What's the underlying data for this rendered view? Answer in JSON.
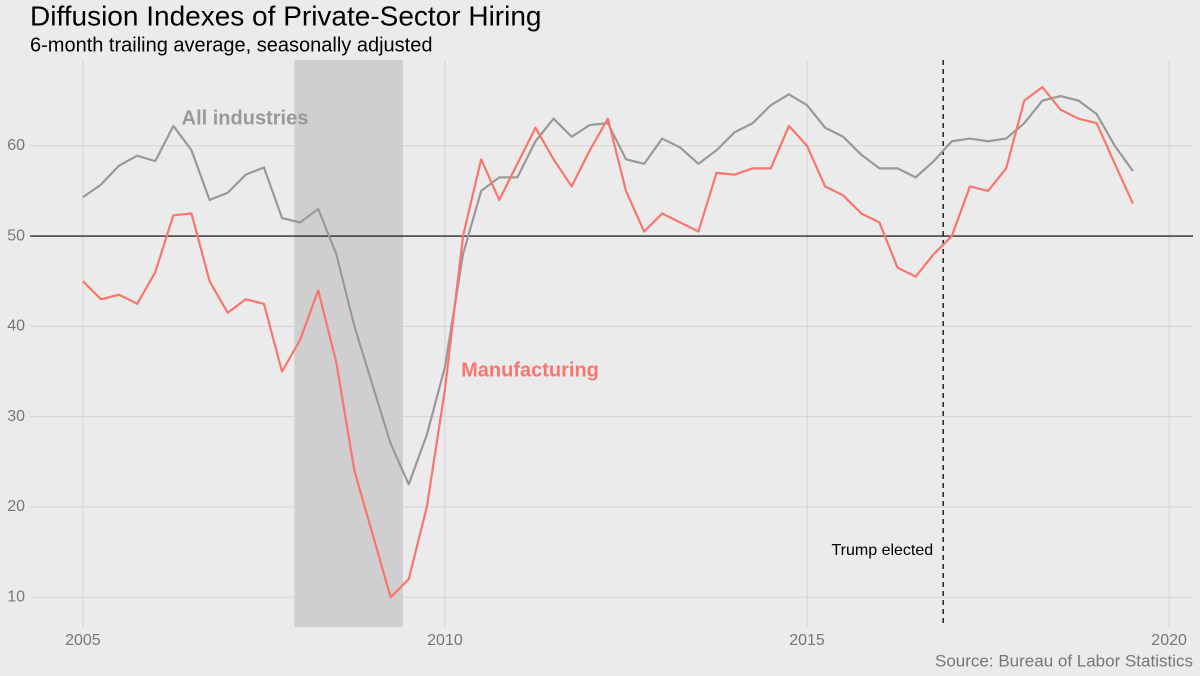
{
  "chart_data": {
    "type": "line",
    "title": "Diffusion Indexes of Private-Sector Hiring",
    "subtitle": "6-month trailing average, seasonally adjusted",
    "caption": "Source: Bureau of Labor Statistics",
    "x": [
      2005.0,
      2005.25,
      2005.5,
      2005.75,
      2006.0,
      2006.25,
      2006.5,
      2006.75,
      2007.0,
      2007.25,
      2007.5,
      2007.75,
      2008.0,
      2008.25,
      2008.5,
      2008.75,
      2009.0,
      2009.25,
      2009.5,
      2009.75,
      2010.0,
      2010.25,
      2010.5,
      2010.75,
      2011.0,
      2011.25,
      2011.5,
      2011.75,
      2012.0,
      2012.25,
      2012.5,
      2012.75,
      2013.0,
      2013.25,
      2013.5,
      2013.75,
      2014.0,
      2014.25,
      2014.5,
      2014.75,
      2015.0,
      2015.25,
      2015.5,
      2015.75,
      2016.0,
      2016.25,
      2016.5,
      2016.75,
      2017.0,
      2017.25,
      2017.5,
      2017.75,
      2018.0,
      2018.25,
      2018.5,
      2018.75,
      2019.0,
      2019.25,
      2019.5
    ],
    "series": [
      {
        "name": "All industries",
        "color": "#999999",
        "values": [
          54.3,
          55.7,
          57.8,
          58.9,
          58.3,
          62.2,
          59.5,
          54.0,
          54.8,
          56.8,
          57.6,
          52.0,
          51.5,
          53.0,
          48.0,
          40.0,
          33.5,
          27.0,
          22.5,
          28.0,
          35.5,
          48.0,
          55.0,
          56.5,
          56.5,
          60.5,
          63.0,
          61.0,
          62.3,
          62.5,
          58.5,
          58.0,
          60.8,
          59.8,
          58.0,
          59.5,
          61.5,
          62.5,
          64.5,
          65.7,
          64.5,
          62.0,
          61.0,
          59.0,
          57.5,
          57.5,
          56.5,
          58.3,
          60.5,
          60.8,
          60.5,
          60.8,
          62.5,
          65.0,
          65.5,
          65.0,
          63.5,
          60.0,
          57.2
        ]
      },
      {
        "name": "Manufacturing",
        "color": "#f8766d",
        "values": [
          45.0,
          43.0,
          43.5,
          42.5,
          46.0,
          52.3,
          52.5,
          45.0,
          41.5,
          43.0,
          42.5,
          35.0,
          38.5,
          44.0,
          36.0,
          24.0,
          17.0,
          10.0,
          12.0,
          20.0,
          33.0,
          50.0,
          58.5,
          54.0,
          58.0,
          62.0,
          58.5,
          55.5,
          59.5,
          63.0,
          55.0,
          50.5,
          52.5,
          51.5,
          50.5,
          57.0,
          56.8,
          57.5,
          57.5,
          62.2,
          60.0,
          55.5,
          54.5,
          52.5,
          51.5,
          46.5,
          45.5,
          48.0,
          50.0,
          55.5,
          55.0,
          57.5,
          65.0,
          66.5,
          64.0,
          63.0,
          62.5,
          58.0,
          53.6
        ]
      }
    ],
    "xlim": [
      2004.27,
      2020.33
    ],
    "ylim": [
      6.7,
      69.5
    ],
    "xticks": [
      2005,
      2010,
      2015,
      2020
    ],
    "yticks": [
      10,
      20,
      30,
      40,
      50,
      60
    ],
    "grid": true,
    "reference_line_y": 50,
    "shaded_x": [
      2007.92,
      2009.42
    ],
    "vline": {
      "x": 2016.88,
      "label": "Trump elected"
    }
  }
}
